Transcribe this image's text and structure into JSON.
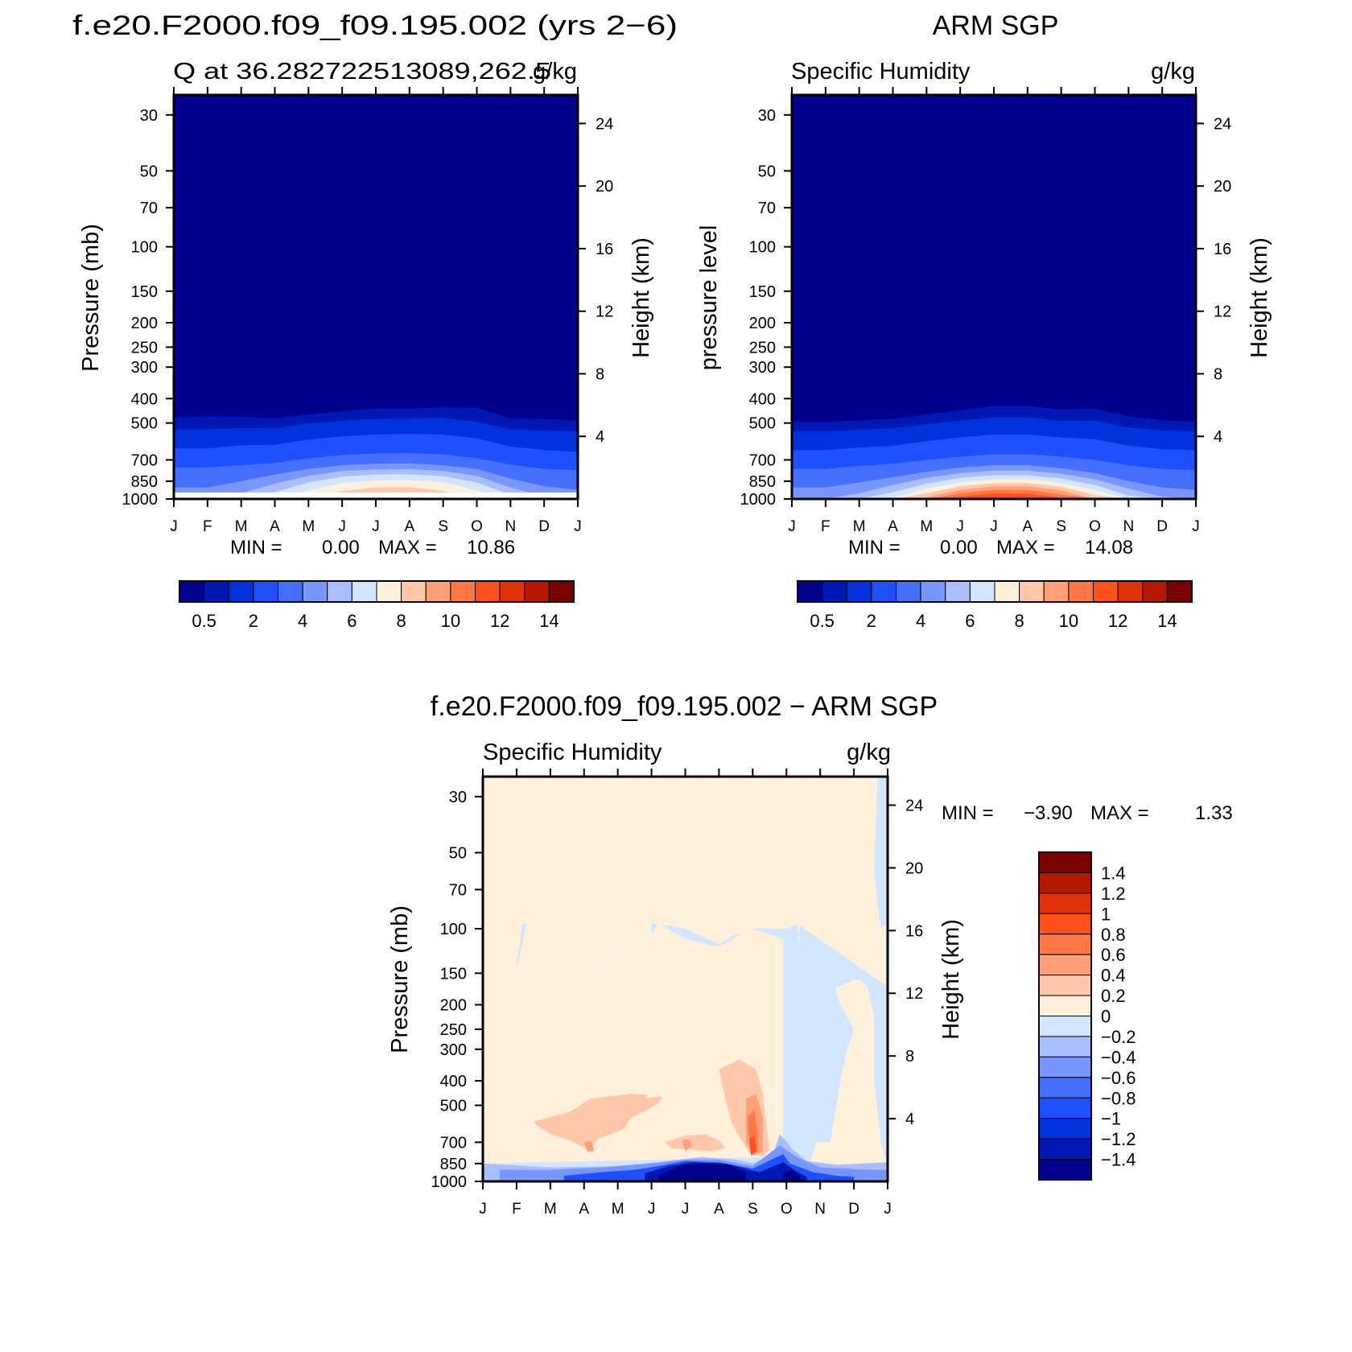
{
  "chart_data": [
    {
      "id": "model",
      "type": "heatmap",
      "title": "f.e20.F2000.f09_f09.195.002 (yrs 2−6)",
      "subtitle_left": "Q at 36.282722513089,262.5",
      "subtitle_right": "g/kg",
      "ylabel": "Pressure (mb)",
      "y2label": "Height (km)",
      "x_ticks": [
        "J",
        "F",
        "M",
        "A",
        "M",
        "J",
        "J",
        "A",
        "S",
        "O",
        "N",
        "D",
        "J"
      ],
      "y_ticks": [
        30,
        50,
        70,
        100,
        150,
        200,
        250,
        300,
        400,
        500,
        700,
        850,
        1000
      ],
      "y2_ticks": [
        4,
        8,
        12,
        16,
        20,
        24
      ],
      "ylim": [
        25,
        1000
      ],
      "stats": {
        "min_label": "MIN =",
        "min": "0.00",
        "max_label": "MAX =",
        "max": "10.86"
      },
      "colorbar_labels": [
        "0.5",
        "2",
        "4",
        "6",
        "8",
        "10",
        "12",
        "14"
      ],
      "boundary_levels": [
        "1 : 930 930 930 930 930 930 930 930 930 930 930 930 930 930 930 930",
        "2 : 470 470 480 480 440 425 420 410 400 390 470 480 470 470 470 470",
        "3 : 625 625 615 610 585 555 535 530 530 540 610 630 640 640 640 640",
        "4 : 740 740 735 720 690 660 640 630 630 650 700 740 740 740 740 740"
      ],
      "profile": {
        "contours": [
          {
            "level": 1,
            "p": [
              475,
              470,
              472,
              480,
              462,
              450,
              438,
              438,
              433,
              435,
              478,
              482,
              490
            ]
          },
          {
            "level": 2,
            "p": [
              530,
              530,
              523,
              525,
              500,
              490,
              482,
              480,
              478,
              495,
              530,
              535,
              540
            ]
          },
          {
            "level": 3,
            "p": [
              630,
              630,
              612,
              610,
              582,
              565,
              555,
              553,
              555,
              575,
              620,
              640,
              650
            ]
          },
          {
            "level": 4,
            "p": [
              750,
              750,
              735,
              720,
              690,
              670,
              660,
              658,
              665,
              690,
              730,
              760,
              770
            ]
          },
          {
            "level": 5,
            "p": [
              900,
              900,
              850,
              800,
              760,
              735,
              725,
              722,
              735,
              760,
              830,
              890,
              920
            ]
          },
          {
            "level": 6,
            "p": [
              1000,
              1000,
              950,
              870,
              810,
              775,
              765,
              762,
              775,
              810,
              900,
              980,
              1000
            ]
          },
          {
            "level": 7,
            "p": [
              1000,
              1000,
              1000,
              940,
              860,
              815,
              800,
              798,
              812,
              860,
              960,
              1000,
              1000
            ]
          },
          {
            "level": 8,
            "p": [
              1000,
              1000,
              1000,
              1000,
              925,
              865,
              845,
              842,
              860,
              925,
              1000,
              1000,
              1000
            ]
          },
          {
            "level": 9,
            "p": [
              1000,
              1000,
              1000,
              1000,
              990,
              930,
              900,
              898,
              930,
              995,
              1000,
              1000,
              1000
            ]
          },
          {
            "level": 10,
            "p": [
              1000,
              1000,
              1000,
              1000,
              1000,
              985,
              965,
              965,
              990,
              1000,
              1000,
              1000,
              1000
            ]
          }
        ]
      }
    },
    {
      "id": "obs",
      "type": "heatmap",
      "title": "ARM SGP",
      "subtitle_left": "Specific Humidity",
      "subtitle_right": "g/kg",
      "ylabel": "pressure level",
      "y2label": "Height (km)",
      "x_ticks": [
        "J",
        "F",
        "M",
        "A",
        "M",
        "J",
        "J",
        "A",
        "S",
        "O",
        "N",
        "D",
        "J"
      ],
      "y_ticks": [
        30,
        50,
        70,
        100,
        150,
        200,
        250,
        300,
        400,
        500,
        700,
        850,
        1000
      ],
      "y2_ticks": [
        4,
        8,
        12,
        16,
        20,
        24
      ],
      "ylim": [
        25,
        1000
      ],
      "stats": {
        "min_label": "MIN =",
        "min": "0.00",
        "max_label": "MAX =",
        "max": "14.08"
      },
      "colorbar_labels": [
        "0.5",
        "2",
        "4",
        "6",
        "8",
        "10",
        "12",
        "14"
      ],
      "profile": {
        "contours": [
          {
            "level": 1,
            "p": [
              495,
              495,
              488,
              482,
              462,
              445,
              428,
              428,
              442,
              438,
              470,
              488,
              495
            ]
          },
          {
            "level": 2,
            "p": [
              540,
              540,
              532,
              525,
              505,
              490,
              475,
              475,
              490,
              490,
              520,
              535,
              540
            ]
          },
          {
            "level": 3,
            "p": [
              640,
              640,
              625,
              615,
              590,
              570,
              555,
              555,
              570,
              580,
              615,
              635,
              640
            ]
          },
          {
            "level": 4,
            "p": [
              760,
              760,
              740,
              725,
              700,
              680,
              665,
              665,
              680,
              700,
              735,
              760,
              770
            ]
          },
          {
            "level": 5,
            "p": [
              900,
              900,
              860,
              820,
              780,
              750,
              735,
              735,
              755,
              790,
              850,
              900,
              920
            ]
          },
          {
            "level": 6,
            "p": [
              1000,
              1000,
              950,
              880,
              825,
              790,
              772,
              772,
              795,
              835,
              910,
              980,
              1000
            ]
          },
          {
            "level": 7,
            "p": [
              1000,
              1000,
              1000,
              940,
              870,
              825,
              805,
              805,
              830,
              880,
              970,
              1000,
              1000
            ]
          },
          {
            "level": 8,
            "p": [
              1000,
              1000,
              1000,
              990,
              910,
              860,
              838,
              838,
              865,
              925,
              1000,
              1000,
              1000
            ]
          },
          {
            "level": 9,
            "p": [
              1000,
              1000,
              1000,
              1000,
              950,
              890,
              865,
              865,
              895,
              965,
              1000,
              1000,
              1000
            ]
          },
          {
            "level": 10,
            "p": [
              1000,
              1000,
              1000,
              1000,
              985,
              920,
              892,
              892,
              925,
              1000,
              1000,
              1000,
              1000
            ]
          },
          {
            "level": 11,
            "p": [
              1000,
              1000,
              1000,
              1000,
              1000,
              950,
              920,
              920,
              960,
              1000,
              1000,
              1000,
              1000
            ]
          },
          {
            "level": 12,
            "p": [
              1000,
              1000,
              1000,
              1000,
              1000,
              980,
              950,
              952,
              990,
              1000,
              1000,
              1000,
              1000
            ]
          },
          {
            "level": 13,
            "p": [
              1000,
              1000,
              1000,
              1000,
              1000,
              1000,
              985,
              990,
              1000,
              1000,
              1000,
              1000,
              1000
            ]
          }
        ]
      }
    },
    {
      "id": "diff",
      "type": "heatmap",
      "title": "f.e20.F2000.f09_f09.195.002 − ARM SGP",
      "subtitle_left": "Specific Humidity",
      "subtitle_right": "g/kg",
      "ylabel": "Pressure (mb)",
      "y2label": "Height (km)",
      "x_ticks": [
        "J",
        "F",
        "M",
        "A",
        "M",
        "J",
        "J",
        "A",
        "S",
        "O",
        "N",
        "D",
        "J"
      ],
      "y_ticks": [
        30,
        50,
        70,
        100,
        150,
        200,
        250,
        300,
        400,
        500,
        700,
        850,
        1000
      ],
      "y2_ticks": [
        4,
        8,
        12,
        16,
        20,
        24
      ],
      "ylim": [
        25,
        1000
      ],
      "stats": {
        "min_label": "MIN =",
        "min": "−3.90",
        "max_label": "MAX =",
        "max": "1.33"
      },
      "colorbar_labels": [
        "1.4",
        "1.2",
        "1",
        "0.8",
        "0.6",
        "0.4",
        "0.2",
        "0",
        "−0.2",
        "−0.4",
        "−0.6",
        "−0.8",
        "−1",
        "−1.2",
        "−1.4"
      ]
    }
  ],
  "colors": {
    "sequential": [
      "#00008c",
      "#0019b4",
      "#0032dc",
      "#1e50ff",
      "#466eff",
      "#7896ff",
      "#aabeff",
      "#d2e6ff",
      "#fff0dc",
      "#ffc8aa",
      "#ffa078",
      "#ff7846",
      "#ff501e",
      "#e1320a",
      "#b41900",
      "#7d0000"
    ],
    "diverging_low_to_high": [
      "#00008c",
      "#0019b4",
      "#0032dc",
      "#1e50ff",
      "#466eff",
      "#7896ff",
      "#aabeff",
      "#d2e6ff",
      "#fff0dc",
      "#ffc8aa",
      "#ffa078",
      "#ff7846",
      "#ff501e",
      "#e1320a",
      "#b41900",
      "#7d0000"
    ]
  }
}
